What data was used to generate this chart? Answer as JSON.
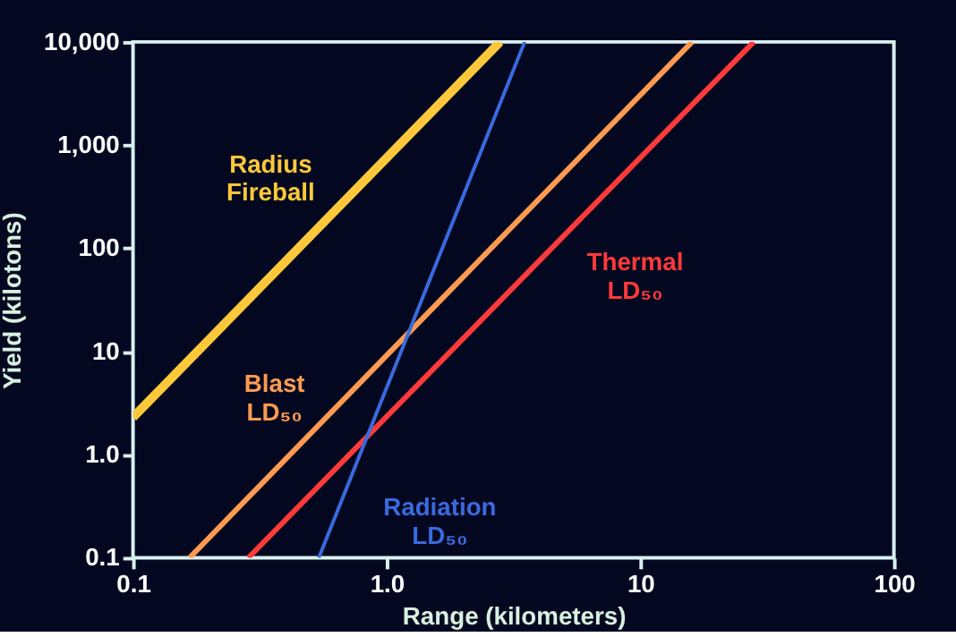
{
  "chart_data": {
    "type": "line",
    "xlabel": "Range  (kilometers)",
    "ylabel": "Yield  (kilotons)",
    "log": "xy",
    "grid": false,
    "marker": "none",
    "line_style": "solid",
    "xlim": [
      0.1,
      100
    ],
    "ylim": [
      0.1,
      10000
    ],
    "xticks": [
      0.1,
      {
        "value": 1,
        "label": "1.0"
      },
      10,
      100
    ],
    "yticks": [
      0.1,
      {
        "value": 1,
        "label": "1.0"
      },
      10,
      100,
      {
        "value": 1000,
        "label": "1,000"
      },
      {
        "value": 10000,
        "label": "10,000"
      }
    ],
    "series": [
      {
        "name": "Radius Fireball",
        "color": "#ffc83a",
        "x": [
          0.1,
          2.8
        ],
        "values": [
          2.3,
          10000
        ]
      },
      {
        "name": "Blast LD₅₀",
        "color": "#ff9a50",
        "x": [
          0.167,
          16
        ],
        "values": [
          0.1,
          10000
        ]
      },
      {
        "name": "Thermal LD₅₀",
        "color": "#ff3a3a",
        "x": [
          0.285,
          28
        ],
        "values": [
          0.1,
          10000
        ]
      },
      {
        "name": "Radiation LD₅₀",
        "color": "#3a6adf",
        "x": [
          0.54,
          3.5
        ],
        "values": [
          0.1,
          10000
        ]
      }
    ]
  }
}
